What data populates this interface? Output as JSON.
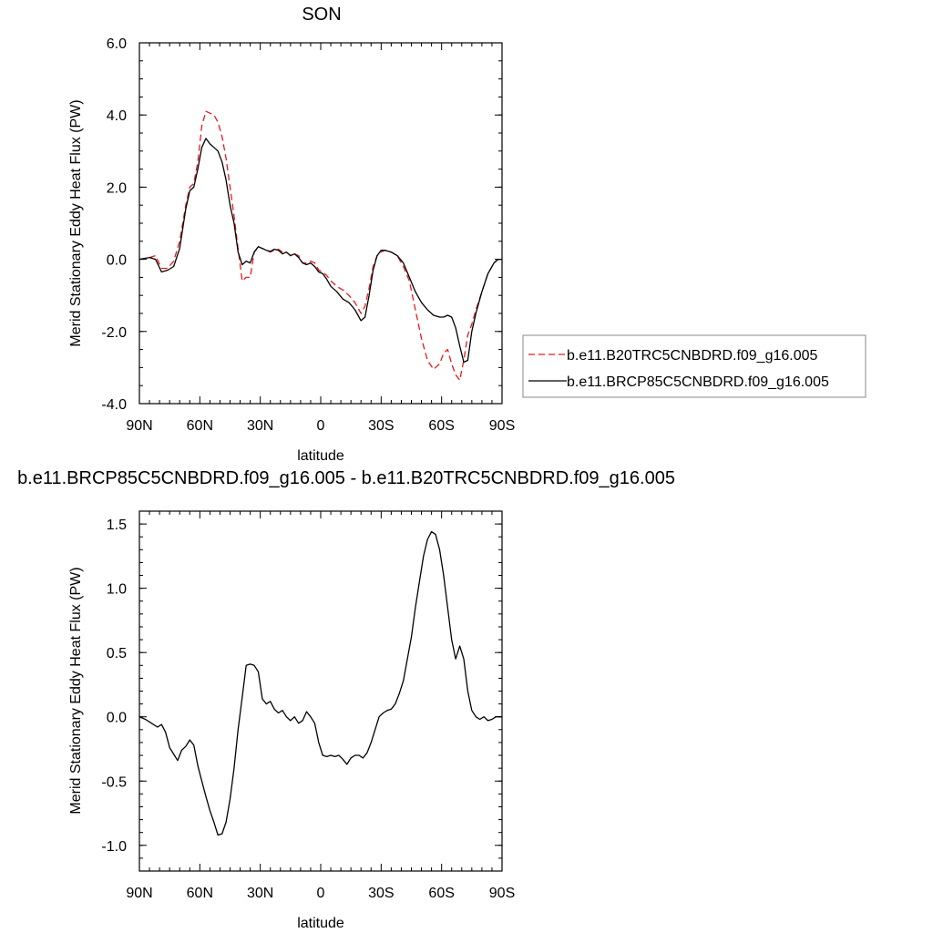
{
  "colors": {
    "series_a": "#e8191b",
    "series_b": "#000000",
    "frame": "#000000",
    "legend_border": "#888888"
  },
  "chart_data": [
    {
      "type": "line",
      "title": "SON",
      "xlabel": "latitude",
      "ylabel": "Merid Stationary Eddy Heat Flux (PW)",
      "xlim": [
        90,
        -90
      ],
      "ylim": [
        -4,
        6
      ],
      "xticks": [
        90,
        60,
        30,
        0,
        -30,
        -60,
        -90
      ],
      "xticklabels": [
        "90N",
        "60N",
        "30N",
        "0",
        "30S",
        "60S",
        "90S"
      ],
      "yticks": [
        -4,
        -2,
        0,
        2,
        4,
        6
      ],
      "yticklabels": [
        "-4.0",
        "-2.0",
        "0.0",
        "2.0",
        "4.0",
        "6.0"
      ],
      "legend": "right",
      "series": [
        {
          "name": "b.e11.B20TRC5CNBDRD.f09_g16.005",
          "style": "dashed",
          "color": "#e8191b",
          "x": [
            90,
            85,
            82,
            79,
            76,
            73,
            70,
            67,
            65,
            63,
            61,
            59,
            57,
            55,
            53,
            51,
            49,
            47,
            45,
            43,
            41,
            39,
            37,
            35,
            33,
            31,
            29,
            27,
            25,
            23,
            21,
            19,
            17,
            15,
            13,
            11,
            9,
            7,
            5,
            3,
            1,
            -1,
            -3,
            -5,
            -8,
            -11,
            -14,
            -17,
            -20,
            -22,
            -24,
            -26,
            -28,
            -30,
            -32,
            -35,
            -38,
            -41,
            -44,
            -47,
            -50,
            -53,
            -56,
            -59,
            -61,
            -63,
            -65,
            -67,
            -69,
            -71,
            -73,
            -75,
            -77,
            -80,
            -83,
            -86,
            -88,
            -90
          ],
          "y": [
            0.0,
            0.05,
            0.1,
            -0.25,
            -0.25,
            -0.05,
            0.5,
            1.5,
            2.0,
            2.1,
            2.7,
            3.7,
            4.1,
            4.05,
            4.0,
            3.8,
            3.4,
            2.8,
            2.0,
            1.2,
            0.3,
            -0.6,
            -0.5,
            -0.5,
            0.2,
            0.35,
            0.3,
            0.25,
            0.2,
            0.25,
            0.28,
            0.2,
            0.2,
            0.1,
            0.15,
            0.1,
            -0.1,
            -0.1,
            -0.05,
            -0.1,
            -0.3,
            -0.35,
            -0.45,
            -0.6,
            -0.75,
            -0.85,
            -1.0,
            -1.2,
            -1.5,
            -1.3,
            -0.8,
            -0.2,
            0.1,
            0.2,
            0.25,
            0.2,
            0.1,
            -0.2,
            -0.6,
            -1.4,
            -2.2,
            -2.8,
            -3.05,
            -2.9,
            -2.6,
            -2.5,
            -2.9,
            -3.2,
            -3.35,
            -2.8,
            -2.1,
            -1.8,
            -1.4,
            -0.9,
            -0.4,
            -0.1,
            0.0,
            0.0
          ]
        },
        {
          "name": "b.e11.BRCP85C5CNBDRD.f09_g16.005",
          "style": "solid",
          "color": "#000000",
          "x": [
            90,
            85,
            82,
            79,
            76,
            73,
            70,
            67,
            65,
            63,
            61,
            59,
            57,
            55,
            53,
            51,
            49,
            47,
            45,
            43,
            41,
            39,
            37,
            35,
            33,
            31,
            29,
            27,
            25,
            23,
            21,
            19,
            17,
            15,
            13,
            11,
            9,
            7,
            5,
            3,
            1,
            -1,
            -3,
            -5,
            -8,
            -11,
            -14,
            -17,
            -20,
            -22,
            -24,
            -26,
            -28,
            -30,
            -32,
            -35,
            -38,
            -41,
            -44,
            -47,
            -50,
            -53,
            -56,
            -59,
            -61,
            -63,
            -65,
            -67,
            -69,
            -71,
            -73,
            -75,
            -77,
            -80,
            -83,
            -86,
            -88,
            -90
          ],
          "y": [
            0.0,
            0.05,
            0.0,
            -0.35,
            -0.3,
            -0.2,
            0.3,
            1.4,
            1.9,
            2.0,
            2.5,
            3.1,
            3.35,
            3.2,
            3.1,
            3.0,
            2.7,
            2.2,
            1.5,
            1.0,
            0.2,
            -0.15,
            -0.05,
            -0.1,
            0.2,
            0.35,
            0.3,
            0.25,
            0.22,
            0.28,
            0.25,
            0.15,
            0.2,
            0.1,
            0.15,
            0.05,
            -0.1,
            -0.15,
            -0.1,
            -0.2,
            -0.35,
            -0.4,
            -0.55,
            -0.75,
            -0.9,
            -1.1,
            -1.2,
            -1.4,
            -1.7,
            -1.6,
            -1.0,
            -0.3,
            0.1,
            0.25,
            0.25,
            0.2,
            0.1,
            -0.1,
            -0.5,
            -0.9,
            -1.2,
            -1.4,
            -1.55,
            -1.6,
            -1.6,
            -1.55,
            -1.6,
            -1.9,
            -2.4,
            -2.85,
            -2.8,
            -2.0,
            -1.5,
            -0.9,
            -0.4,
            -0.1,
            0.0,
            0.0
          ]
        }
      ]
    },
    {
      "type": "line",
      "title": "b.e11.BRCP85C5CNBDRD.f09_g16.005 - b.e11.B20TRC5CNBDRD.f09_g16.005",
      "xlabel": "latitude",
      "ylabel": "Merid Stationary Eddy Heat Flux (PW)",
      "xlim": [
        90,
        -90
      ],
      "ylim": [
        -1.2,
        1.6
      ],
      "xticks": [
        90,
        60,
        30,
        0,
        -30,
        -60,
        -90
      ],
      "xticklabels": [
        "90N",
        "60N",
        "30N",
        "0",
        "30S",
        "60S",
        "90S"
      ],
      "yticks": [
        -1.0,
        -0.5,
        0.0,
        0.5,
        1.0,
        1.5
      ],
      "yticklabels": [
        "-1.0",
        "-0.5",
        "0.0",
        "0.5",
        "1.0",
        "1.5"
      ],
      "series": [
        {
          "style": "solid",
          "color": "#000000",
          "x": [
            90,
            87,
            84,
            81,
            79,
            77,
            75,
            73,
            71,
            69,
            67,
            65,
            63,
            61,
            59,
            57,
            55,
            53,
            51,
            49,
            47,
            45,
            43,
            41,
            39,
            37,
            35,
            33,
            31,
            29,
            27,
            25,
            23,
            21,
            19,
            17,
            15,
            13,
            11,
            9,
            7,
            5,
            3,
            1,
            -1,
            -3,
            -5,
            -7,
            -9,
            -11,
            -13,
            -15,
            -17,
            -19,
            -21,
            -23,
            -25,
            -27,
            -29,
            -31,
            -33,
            -35,
            -37,
            -39,
            -41,
            -43,
            -45,
            -47,
            -49,
            -51,
            -53,
            -55,
            -57,
            -59,
            -61,
            -63,
            -65,
            -67,
            -69,
            -71,
            -73,
            -75,
            -77,
            -79,
            -81,
            -83,
            -85,
            -87,
            -90
          ],
          "y": [
            0.0,
            -0.02,
            -0.05,
            -0.08,
            -0.06,
            -0.12,
            -0.24,
            -0.29,
            -0.34,
            -0.26,
            -0.23,
            -0.18,
            -0.22,
            -0.38,
            -0.5,
            -0.62,
            -0.73,
            -0.82,
            -0.92,
            -0.91,
            -0.82,
            -0.64,
            -0.4,
            -0.1,
            0.15,
            0.4,
            0.41,
            0.4,
            0.35,
            0.14,
            0.1,
            0.12,
            0.06,
            0.03,
            0.05,
            0.0,
            -0.03,
            0.0,
            -0.05,
            -0.03,
            0.04,
            0.0,
            -0.05,
            -0.2,
            -0.3,
            -0.31,
            -0.3,
            -0.31,
            -0.3,
            -0.33,
            -0.37,
            -0.32,
            -0.3,
            -0.3,
            -0.32,
            -0.28,
            -0.2,
            -0.1,
            0.0,
            0.03,
            0.05,
            0.06,
            0.1,
            0.18,
            0.28,
            0.45,
            0.62,
            0.85,
            1.05,
            1.25,
            1.38,
            1.44,
            1.42,
            1.3,
            1.1,
            0.85,
            0.6,
            0.45,
            0.55,
            0.45,
            0.2,
            0.05,
            0.0,
            -0.02,
            0.0,
            -0.03,
            -0.02,
            0.0,
            0.0
          ]
        }
      ]
    }
  ]
}
